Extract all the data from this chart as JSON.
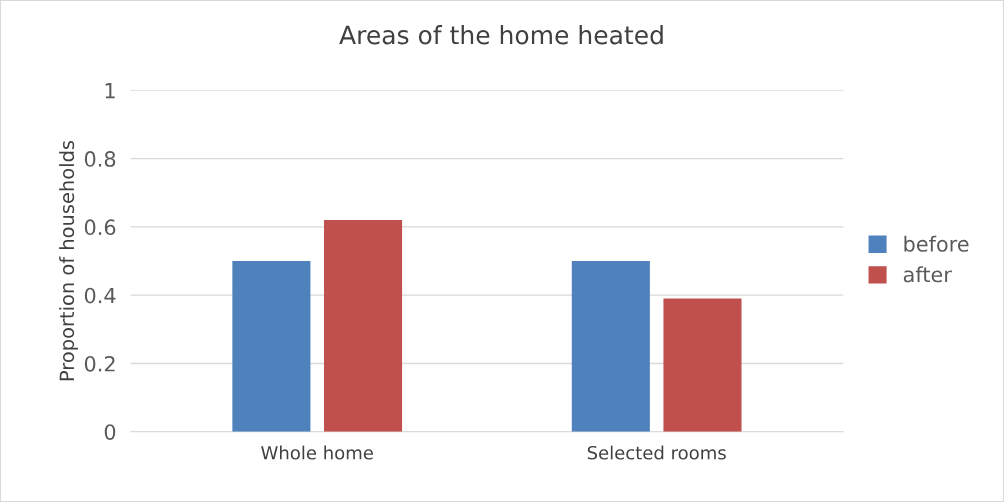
{
  "chart_data": {
    "type": "bar",
    "title": "Areas of the home heated",
    "ylabel": "Proportion of households",
    "categories": [
      "Whole home",
      "Selected rooms"
    ],
    "series": [
      {
        "name": "before",
        "color": "#4f81bd",
        "values": [
          0.5,
          0.5
        ]
      },
      {
        "name": "after",
        "color": "#c0504d",
        "values": [
          0.62,
          0.39
        ]
      }
    ],
    "ylim": [
      0,
      1
    ],
    "yticks": [
      0,
      0.2,
      0.4,
      0.6,
      0.8,
      1
    ],
    "grid": "y",
    "legend": "right"
  }
}
